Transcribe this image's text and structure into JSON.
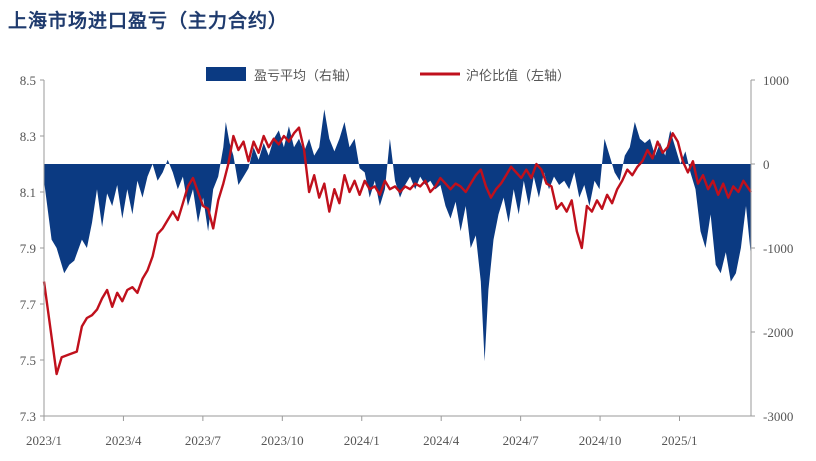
{
  "title": "上海市场进口盈亏（主力合约）",
  "chart_data": {
    "type": "area+line",
    "legend": [
      {
        "name": "盈亏平均（右轴）",
        "color": "#0b3a82",
        "kind": "area"
      },
      {
        "name": "沪伦比值（左轴）",
        "color": "#c0101c",
        "kind": "line"
      }
    ],
    "x_labels": [
      "2023/1",
      "2023/4",
      "2023/7",
      "2023/10",
      "2024/1",
      "2024/4",
      "2024/7",
      "2024/10",
      "2025/1"
    ],
    "left_axis": {
      "ticks": [
        "8.5",
        "8.3",
        "8.1",
        "7.9",
        "7.7",
        "7.5",
        "7.3"
      ],
      "range": [
        7.3,
        8.5
      ]
    },
    "right_axis": {
      "ticks": [
        "1000",
        "0",
        "-1000",
        "-2000",
        "-3000"
      ],
      "range": [
        -3000,
        1000
      ]
    },
    "series": [
      {
        "name": "盈亏平均（右轴）",
        "axis": "right",
        "points": [
          [
            0.0,
            -200
          ],
          [
            0.3,
            -900
          ],
          [
            0.5,
            -1000
          ],
          [
            0.8,
            -1300
          ],
          [
            1.0,
            -1200
          ],
          [
            1.2,
            -1150
          ],
          [
            1.5,
            -900
          ],
          [
            1.7,
            -1000
          ],
          [
            1.9,
            -700
          ],
          [
            2.1,
            -300
          ],
          [
            2.3,
            -750
          ],
          [
            2.5,
            -350
          ],
          [
            2.7,
            -500
          ],
          [
            2.9,
            -250
          ],
          [
            3.1,
            -650
          ],
          [
            3.3,
            -300
          ],
          [
            3.5,
            -600
          ],
          [
            3.7,
            -200
          ],
          [
            3.9,
            -400
          ],
          [
            4.1,
            -150
          ],
          [
            4.3,
            0
          ],
          [
            4.5,
            -200
          ],
          [
            4.7,
            -100
          ],
          [
            4.9,
            50
          ],
          [
            5.1,
            -100
          ],
          [
            5.3,
            -300
          ],
          [
            5.5,
            -150
          ],
          [
            5.7,
            -500
          ],
          [
            5.9,
            -300
          ],
          [
            6.1,
            -700
          ],
          [
            6.3,
            -400
          ],
          [
            6.5,
            -800
          ],
          [
            6.7,
            -300
          ],
          [
            6.9,
            -150
          ],
          [
            7.1,
            200
          ],
          [
            7.2,
            500
          ],
          [
            7.35,
            250
          ],
          [
            7.5,
            100
          ],
          [
            7.7,
            -250
          ],
          [
            7.9,
            -150
          ],
          [
            8.1,
            -50
          ],
          [
            8.3,
            200
          ],
          [
            8.5,
            50
          ],
          [
            8.7,
            250
          ],
          [
            8.9,
            100
          ],
          [
            9.1,
            300
          ],
          [
            9.3,
            400
          ],
          [
            9.5,
            200
          ],
          [
            9.7,
            450
          ],
          [
            9.9,
            200
          ],
          [
            10.1,
            300
          ],
          [
            10.3,
            150
          ],
          [
            10.5,
            300
          ],
          [
            10.7,
            100
          ],
          [
            10.9,
            200
          ],
          [
            11.1,
            650
          ],
          [
            11.3,
            300
          ],
          [
            11.5,
            150
          ],
          [
            11.7,
            300
          ],
          [
            11.9,
            500
          ],
          [
            12.1,
            200
          ],
          [
            12.3,
            300
          ],
          [
            12.5,
            -50
          ],
          [
            12.7,
            -100
          ],
          [
            12.9,
            -400
          ],
          [
            13.1,
            -200
          ],
          [
            13.3,
            -500
          ],
          [
            13.5,
            -300
          ],
          [
            13.7,
            300
          ],
          [
            13.9,
            -200
          ],
          [
            14.1,
            -400
          ],
          [
            14.3,
            -250
          ],
          [
            14.5,
            -150
          ],
          [
            14.7,
            -300
          ],
          [
            14.9,
            -150
          ],
          [
            15.1,
            -250
          ],
          [
            15.3,
            -200
          ],
          [
            15.5,
            -300
          ],
          [
            15.7,
            -250
          ],
          [
            15.9,
            -500
          ],
          [
            16.1,
            -650
          ],
          [
            16.3,
            -450
          ],
          [
            16.5,
            -800
          ],
          [
            16.7,
            -500
          ],
          [
            16.9,
            -1000
          ],
          [
            17.1,
            -850
          ],
          [
            17.3,
            -1400
          ],
          [
            17.45,
            -2350
          ],
          [
            17.6,
            -1500
          ],
          [
            17.8,
            -900
          ],
          [
            18.0,
            -600
          ],
          [
            18.2,
            -400
          ],
          [
            18.4,
            -700
          ],
          [
            18.6,
            -300
          ],
          [
            18.8,
            -600
          ],
          [
            19.0,
            -200
          ],
          [
            19.2,
            -500
          ],
          [
            19.4,
            -150
          ],
          [
            19.6,
            -400
          ],
          [
            19.8,
            -100
          ],
          [
            20.0,
            -300
          ],
          [
            20.2,
            -150
          ],
          [
            20.4,
            -250
          ],
          [
            20.6,
            -200
          ],
          [
            20.8,
            -300
          ],
          [
            21.0,
            -100
          ],
          [
            21.2,
            -400
          ],
          [
            21.4,
            -250
          ],
          [
            21.6,
            -500
          ],
          [
            21.8,
            -200
          ],
          [
            22.0,
            -300
          ],
          [
            22.2,
            300
          ],
          [
            22.4,
            100
          ],
          [
            22.6,
            -100
          ],
          [
            22.8,
            -200
          ],
          [
            23.0,
            100
          ],
          [
            23.2,
            200
          ],
          [
            23.4,
            500
          ],
          [
            23.6,
            300
          ],
          [
            23.8,
            250
          ],
          [
            24.0,
            300
          ],
          [
            24.2,
            100
          ],
          [
            24.4,
            250
          ],
          [
            24.6,
            100
          ],
          [
            24.8,
            400
          ],
          [
            25.0,
            200
          ],
          [
            25.2,
            0
          ],
          [
            25.4,
            150
          ],
          [
            25.6,
            -100
          ],
          [
            25.8,
            -300
          ],
          [
            26.0,
            -800
          ],
          [
            26.2,
            -1000
          ],
          [
            26.4,
            -600
          ],
          [
            26.6,
            -1200
          ],
          [
            26.8,
            -1300
          ],
          [
            27.0,
            -1050
          ],
          [
            27.2,
            -1400
          ],
          [
            27.4,
            -1300
          ],
          [
            27.6,
            -1000
          ],
          [
            27.8,
            -500
          ],
          [
            28.0,
            -1100
          ]
        ]
      },
      {
        "name": "沪伦比值（左轴）",
        "axis": "left",
        "points": [
          [
            0.0,
            7.78
          ],
          [
            0.2,
            7.65
          ],
          [
            0.35,
            7.55
          ],
          [
            0.5,
            7.45
          ],
          [
            0.7,
            7.51
          ],
          [
            1.0,
            7.52
          ],
          [
            1.3,
            7.53
          ],
          [
            1.5,
            7.62
          ],
          [
            1.7,
            7.65
          ],
          [
            1.9,
            7.66
          ],
          [
            2.1,
            7.68
          ],
          [
            2.3,
            7.72
          ],
          [
            2.5,
            7.75
          ],
          [
            2.7,
            7.69
          ],
          [
            2.9,
            7.74
          ],
          [
            3.1,
            7.71
          ],
          [
            3.3,
            7.75
          ],
          [
            3.5,
            7.76
          ],
          [
            3.7,
            7.74
          ],
          [
            3.9,
            7.79
          ],
          [
            4.1,
            7.82
          ],
          [
            4.3,
            7.87
          ],
          [
            4.5,
            7.95
          ],
          [
            4.7,
            7.97
          ],
          [
            4.9,
            8.0
          ],
          [
            5.1,
            8.03
          ],
          [
            5.3,
            8.0
          ],
          [
            5.5,
            8.06
          ],
          [
            5.7,
            8.12
          ],
          [
            5.9,
            8.15
          ],
          [
            6.1,
            8.1
          ],
          [
            6.3,
            8.05
          ],
          [
            6.5,
            8.04
          ],
          [
            6.7,
            7.97
          ],
          [
            6.9,
            8.07
          ],
          [
            7.1,
            8.13
          ],
          [
            7.3,
            8.2
          ],
          [
            7.5,
            8.3
          ],
          [
            7.7,
            8.25
          ],
          [
            7.9,
            8.28
          ],
          [
            8.1,
            8.21
          ],
          [
            8.3,
            8.28
          ],
          [
            8.5,
            8.24
          ],
          [
            8.7,
            8.3
          ],
          [
            8.9,
            8.26
          ],
          [
            9.1,
            8.29
          ],
          [
            9.3,
            8.27
          ],
          [
            9.5,
            8.3
          ],
          [
            9.7,
            8.28
          ],
          [
            9.9,
            8.31
          ],
          [
            10.1,
            8.33
          ],
          [
            10.3,
            8.25
          ],
          [
            10.5,
            8.1
          ],
          [
            10.7,
            8.16
          ],
          [
            10.9,
            8.08
          ],
          [
            11.1,
            8.13
          ],
          [
            11.3,
            8.03
          ],
          [
            11.5,
            8.11
          ],
          [
            11.7,
            8.06
          ],
          [
            11.9,
            8.16
          ],
          [
            12.1,
            8.1
          ],
          [
            12.3,
            8.14
          ],
          [
            12.5,
            8.09
          ],
          [
            12.7,
            8.14
          ],
          [
            12.9,
            8.11
          ],
          [
            13.1,
            8.12
          ],
          [
            13.3,
            8.09
          ],
          [
            13.5,
            8.14
          ],
          [
            13.7,
            8.11
          ],
          [
            13.9,
            8.12
          ],
          [
            14.1,
            8.1
          ],
          [
            14.3,
            8.12
          ],
          [
            14.5,
            8.11
          ],
          [
            14.7,
            8.13
          ],
          [
            14.9,
            8.12
          ],
          [
            15.1,
            8.14
          ],
          [
            15.3,
            8.1
          ],
          [
            15.5,
            8.12
          ],
          [
            15.7,
            8.15
          ],
          [
            15.9,
            8.13
          ],
          [
            16.1,
            8.11
          ],
          [
            16.3,
            8.13
          ],
          [
            16.5,
            8.12
          ],
          [
            16.7,
            8.1
          ],
          [
            16.9,
            8.13
          ],
          [
            17.1,
            8.16
          ],
          [
            17.3,
            8.18
          ],
          [
            17.5,
            8.12
          ],
          [
            17.7,
            8.08
          ],
          [
            17.9,
            8.11
          ],
          [
            18.1,
            8.13
          ],
          [
            18.3,
            8.16
          ],
          [
            18.5,
            8.19
          ],
          [
            18.7,
            8.17
          ],
          [
            18.9,
            8.15
          ],
          [
            19.1,
            8.18
          ],
          [
            19.3,
            8.15
          ],
          [
            19.5,
            8.2
          ],
          [
            19.7,
            8.18
          ],
          [
            19.9,
            8.13
          ],
          [
            20.1,
            8.12
          ],
          [
            20.3,
            8.04
          ],
          [
            20.5,
            8.06
          ],
          [
            20.7,
            8.03
          ],
          [
            20.9,
            8.07
          ],
          [
            21.1,
            7.96
          ],
          [
            21.3,
            7.9
          ],
          [
            21.5,
            8.05
          ],
          [
            21.7,
            8.03
          ],
          [
            21.9,
            8.07
          ],
          [
            22.1,
            8.04
          ],
          [
            22.3,
            8.09
          ],
          [
            22.5,
            8.06
          ],
          [
            22.7,
            8.11
          ],
          [
            22.9,
            8.14
          ],
          [
            23.1,
            8.18
          ],
          [
            23.3,
            8.16
          ],
          [
            23.5,
            8.19
          ],
          [
            23.7,
            8.21
          ],
          [
            23.9,
            8.25
          ],
          [
            24.1,
            8.22
          ],
          [
            24.3,
            8.28
          ],
          [
            24.5,
            8.24
          ],
          [
            24.7,
            8.26
          ],
          [
            24.9,
            8.31
          ],
          [
            25.1,
            8.28
          ],
          [
            25.3,
            8.21
          ],
          [
            25.5,
            8.17
          ],
          [
            25.7,
            8.21
          ],
          [
            25.9,
            8.13
          ],
          [
            26.1,
            8.16
          ],
          [
            26.3,
            8.11
          ],
          [
            26.5,
            8.14
          ],
          [
            26.7,
            8.09
          ],
          [
            26.9,
            8.13
          ],
          [
            27.1,
            8.08
          ],
          [
            27.3,
            8.12
          ],
          [
            27.5,
            8.1
          ],
          [
            27.7,
            8.14
          ],
          [
            28.0,
            8.1
          ]
        ]
      }
    ]
  }
}
